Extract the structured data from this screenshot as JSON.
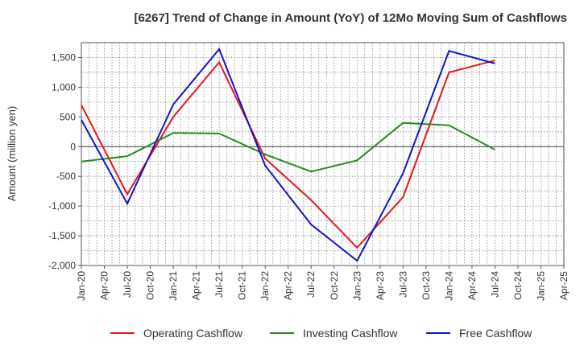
{
  "chart_data": {
    "type": "line",
    "title": "[6267]  Trend of Change in Amount (YoY) of 12Mo Moving Sum of Cashflows",
    "xlabel": "",
    "ylabel": "Amount (million yen)",
    "ylim": [
      -2000,
      1750
    ],
    "yticks": [
      1500,
      1000,
      500,
      0,
      -500,
      -1000,
      -1500,
      -2000
    ],
    "ytick_labels": [
      "1,500",
      "1,000",
      "500",
      "0",
      "-500",
      "-1,000",
      "-1,500",
      "-2,000"
    ],
    "categories": [
      "Jan-20",
      "Apr-20",
      "Jul-20",
      "Oct-20",
      "Jan-21",
      "Apr-21",
      "Jul-21",
      "Oct-21",
      "Jan-22",
      "Apr-22",
      "Jul-22",
      "Oct-22",
      "Jan-23",
      "Apr-23",
      "Jul-23",
      "Oct-23",
      "Jan-24",
      "Apr-24",
      "Jul-24",
      "Oct-24",
      "Jan-25",
      "Apr-25"
    ],
    "grid": true,
    "legend_position": "bottom",
    "series": [
      {
        "name": "Operating Cashflow",
        "color": "#e8161b",
        "values": [
          700,
          null,
          -800,
          null,
          500,
          null,
          1420,
          null,
          -200,
          null,
          -900,
          null,
          -1700,
          null,
          -850,
          null,
          1250,
          null,
          1450,
          null,
          null,
          null
        ]
      },
      {
        "name": "Investing Cashflow",
        "color": "#2a8a24",
        "values": [
          -250,
          null,
          -160,
          null,
          230,
          null,
          220,
          null,
          -130,
          null,
          -420,
          null,
          -230,
          null,
          400,
          null,
          360,
          null,
          -50,
          null,
          null,
          null
        ]
      },
      {
        "name": "Free Cashflow",
        "color": "#1414cc",
        "values": [
          450,
          null,
          -960,
          null,
          710,
          null,
          1640,
          null,
          -320,
          null,
          -1310,
          null,
          -1920,
          null,
          -450,
          null,
          1610,
          null,
          1400,
          null,
          null,
          null
        ]
      }
    ]
  }
}
